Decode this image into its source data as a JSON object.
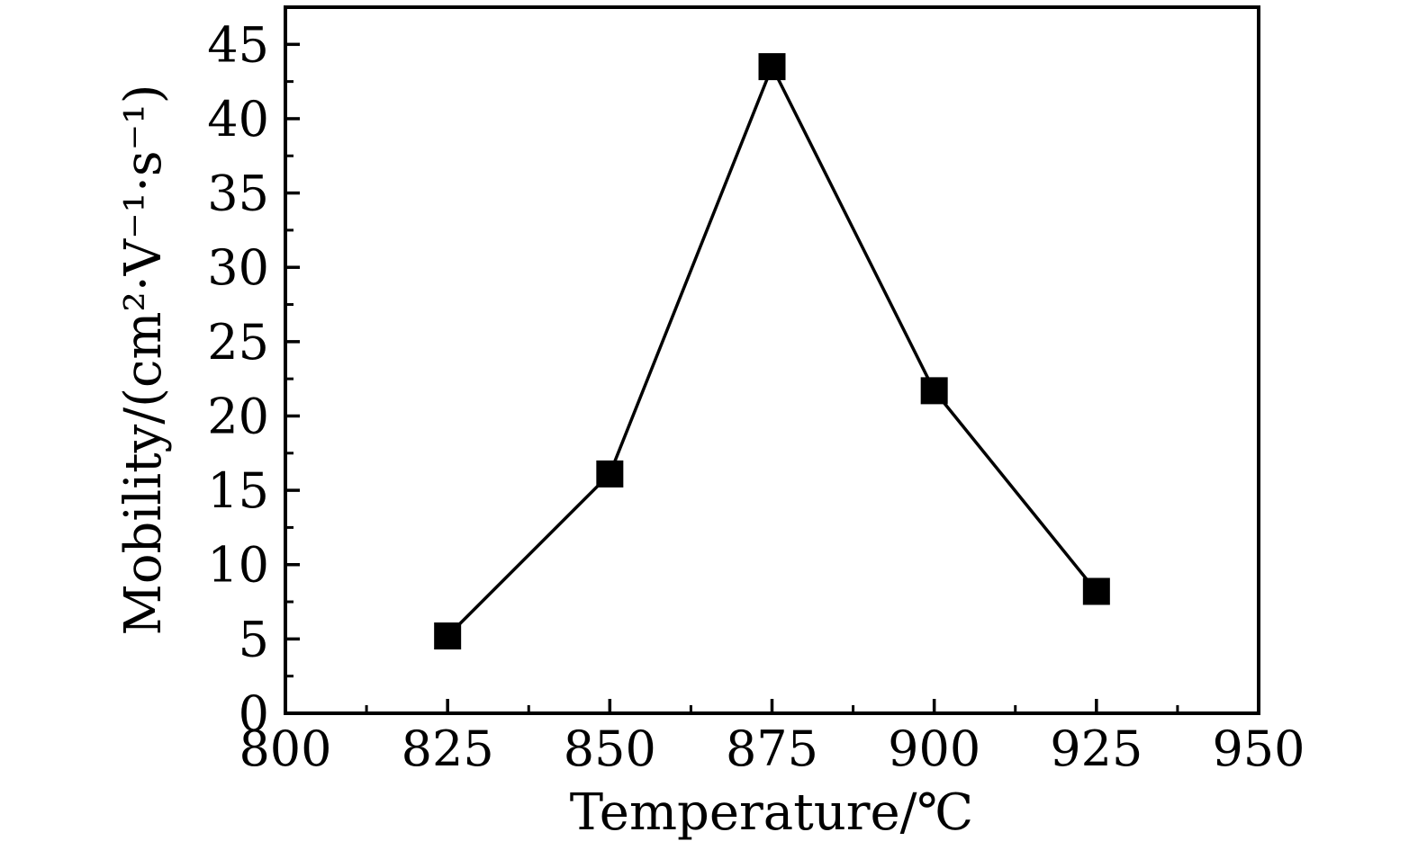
{
  "chart_data": {
    "type": "line",
    "title": "",
    "xlabel": "Temperature/℃",
    "ylabel": "Mobility/(cm²·V⁻¹·s⁻¹)",
    "x": [
      825,
      850,
      875,
      900,
      925
    ],
    "series": [
      {
        "name": "mobility",
        "values": [
          5.2,
          16.1,
          43.5,
          21.7,
          8.2
        ]
      }
    ],
    "xlim": [
      800,
      950
    ],
    "ylim": [
      0,
      47.5
    ],
    "x_major_ticks": [
      800,
      825,
      850,
      875,
      900,
      925,
      950
    ],
    "x_minor_step": 12.5,
    "y_major_ticks": [
      0,
      5,
      10,
      15,
      20,
      25,
      30,
      35,
      40,
      45
    ],
    "y_minor_step": 2.5,
    "grid": false,
    "legend": "none",
    "marker": "filled-square",
    "line_color": "#000000",
    "marker_color": "#000000",
    "frame_color": "#000000",
    "background": "#ffffff",
    "tick_direction": "in"
  }
}
